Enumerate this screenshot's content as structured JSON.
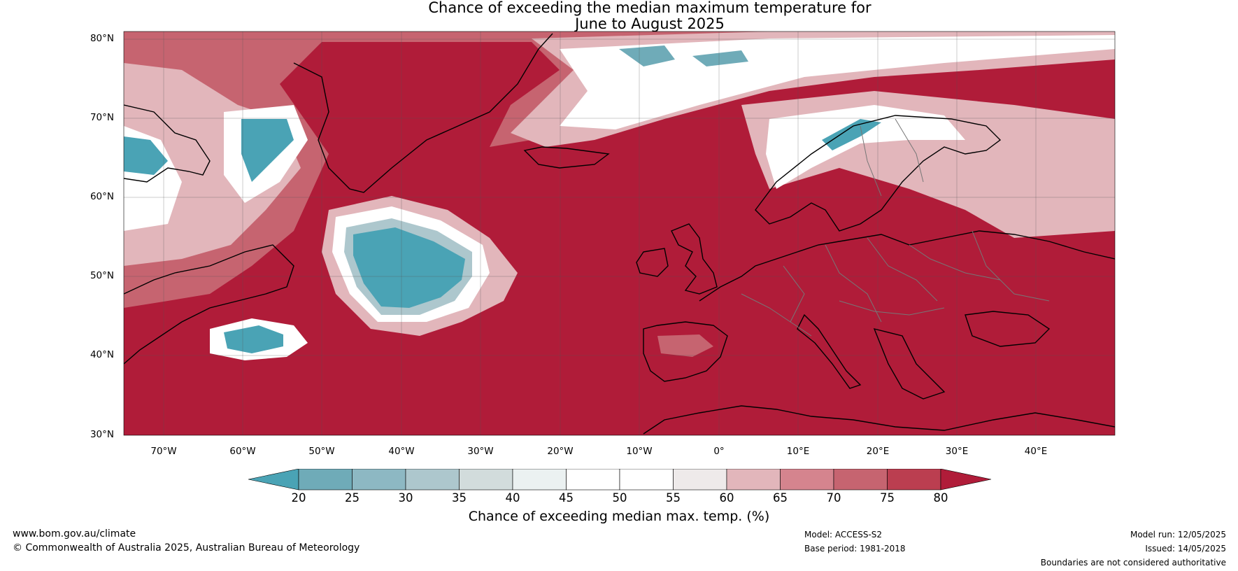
{
  "title": {
    "line1": "Chance of exceeding the median maximum temperature for",
    "line2": "June to August 2025"
  },
  "map": {
    "lat_labels": [
      "80°N",
      "70°N",
      "60°N",
      "50°N",
      "40°N",
      "30°N"
    ],
    "lon_labels": [
      "70°W",
      "60°W",
      "50°W",
      "40°W",
      "30°W",
      "20°W",
      "10°W",
      "0°",
      "10°E",
      "20°E",
      "30°E",
      "40°E"
    ],
    "lat_range": [
      30,
      80
    ],
    "lon_range": [
      -75,
      50
    ]
  },
  "colorbar": {
    "ticks": [
      "20",
      "25",
      "30",
      "35",
      "40",
      "45",
      "50",
      "55",
      "60",
      "65",
      "70",
      "75",
      "80"
    ],
    "colors": [
      "#4aa3b5",
      "#6fabb8",
      "#8db8c3",
      "#adc7cd",
      "#d2dcdc",
      "#ebf1f1",
      "#ffffff",
      "#ffffff",
      "#eeeaea",
      "#e2b6bb",
      "#d5848e",
      "#c66470",
      "#bb3e50",
      "#b01c39"
    ],
    "label": "Chance of exceeding median max. temp. (%)"
  },
  "footer": {
    "website": "www.bom.gov.au/climate",
    "copyright": "© Commonwealth of Australia 2025, Australian Bureau of Meteorology",
    "model": "Model: ACCESS-S2",
    "base_period": "Base period: 1981-2018",
    "model_run": "Model run: 12/05/2025",
    "issued": "Issued: 14/05/2025",
    "disclaimer": "Boundaries are not considered authoritative"
  }
}
